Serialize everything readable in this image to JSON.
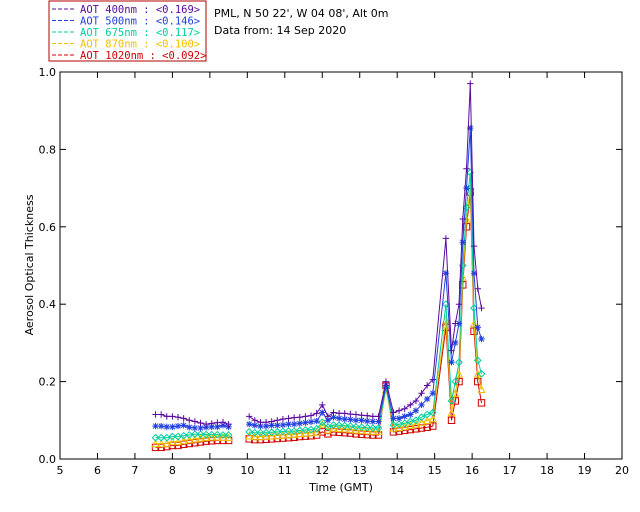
{
  "colors": {
    "background": "#ffffff",
    "axis": "#000000",
    "legend_border": "#b00000"
  },
  "legend": [
    {
      "text": "AOT  400nm : <0.169>",
      "color": "#5a0aa0",
      "marker": "plus"
    },
    {
      "text": "AOT  500nm : <0.146>",
      "color": "#2040e0",
      "marker": "asterisk"
    },
    {
      "text": "AOT  675nm : <0.117>",
      "color": "#00d0a0",
      "marker": "diamond"
    },
    {
      "text": "AOT  870nm : <0.100>",
      "color": "#f0c000",
      "marker": "triangle"
    },
    {
      "text": "AOT 1020nm : <0.092>",
      "color": "#d00000",
      "marker": "square"
    }
  ],
  "info": {
    "line1": "PML, N 50 22', W 04 08', Alt 0m",
    "line2": "Data from: 14 Sep 2020"
  },
  "chart_data": {
    "type": "line",
    "title": "",
    "xlabel": "Time (GMT)",
    "ylabel": "Aerosol Optical Thickness",
    "xlim": [
      5,
      20
    ],
    "ylim": [
      0,
      1.0
    ],
    "xticks": [
      5,
      6,
      7,
      8,
      9,
      10,
      11,
      12,
      13,
      14,
      15,
      16,
      17,
      18,
      19,
      20
    ],
    "yticks": [
      0.0,
      0.2,
      0.4,
      0.6,
      0.8,
      1.0
    ],
    "ytick_labels": [
      "0.0",
      "0.2",
      "0.4",
      "0.6",
      "0.8",
      "1.0"
    ],
    "grid": false,
    "legend_position": "top-left-outside",
    "x": [
      7.55,
      7.7,
      7.85,
      8.0,
      8.15,
      8.3,
      8.45,
      8.6,
      8.75,
      8.9,
      9.05,
      9.2,
      9.35,
      9.5,
      10.05,
      10.2,
      10.35,
      10.5,
      10.65,
      10.8,
      10.95,
      11.1,
      11.25,
      11.4,
      11.55,
      11.7,
      11.85,
      12.0,
      12.15,
      12.3,
      12.45,
      12.6,
      12.75,
      12.9,
      13.05,
      13.2,
      13.35,
      13.5,
      13.7,
      13.9,
      14.05,
      14.2,
      14.35,
      14.5,
      14.65,
      14.8,
      14.95,
      15.3,
      15.45,
      15.55,
      15.65,
      15.75,
      15.85,
      15.95,
      16.05,
      16.15,
      16.25
    ],
    "series": [
      {
        "name": "AOT  400nm",
        "values": [
          0.115,
          0.115,
          0.11,
          0.11,
          0.108,
          0.105,
          0.1,
          0.097,
          0.093,
          0.09,
          0.092,
          0.094,
          0.095,
          0.09,
          0.11,
          0.1,
          0.095,
          0.095,
          0.097,
          0.1,
          0.103,
          0.105,
          0.107,
          0.108,
          0.11,
          0.112,
          0.118,
          0.14,
          0.11,
          0.12,
          0.118,
          0.118,
          0.116,
          0.115,
          0.113,
          0.112,
          0.11,
          0.11,
          0.2,
          0.12,
          0.125,
          0.13,
          0.14,
          0.15,
          0.17,
          0.19,
          0.205,
          0.57,
          0.28,
          0.35,
          0.4,
          0.62,
          0.75,
          0.97,
          0.55,
          0.44,
          0.39
        ]
      },
      {
        "name": "AOT  500nm",
        "values": [
          0.085,
          0.085,
          0.083,
          0.083,
          0.085,
          0.087,
          0.082,
          0.08,
          0.08,
          0.082,
          0.083,
          0.083,
          0.087,
          0.083,
          0.09,
          0.087,
          0.085,
          0.085,
          0.087,
          0.087,
          0.088,
          0.09,
          0.09,
          0.092,
          0.094,
          0.096,
          0.098,
          0.12,
          0.1,
          0.108,
          0.105,
          0.103,
          0.102,
          0.1,
          0.1,
          0.098,
          0.097,
          0.097,
          0.19,
          0.105,
          0.105,
          0.11,
          0.115,
          0.125,
          0.14,
          0.155,
          0.17,
          0.48,
          0.25,
          0.3,
          0.35,
          0.56,
          0.7,
          0.855,
          0.48,
          0.34,
          0.31
        ]
      },
      {
        "name": "AOT  675nm",
        "values": [
          0.055,
          0.055,
          0.055,
          0.058,
          0.058,
          0.06,
          0.062,
          0.064,
          0.064,
          0.063,
          0.063,
          0.063,
          0.062,
          0.062,
          0.07,
          0.068,
          0.068,
          0.068,
          0.069,
          0.07,
          0.071,
          0.072,
          0.072,
          0.074,
          0.075,
          0.076,
          0.078,
          0.095,
          0.082,
          0.088,
          0.087,
          0.086,
          0.085,
          0.083,
          0.082,
          0.081,
          0.08,
          0.08,
          0.185,
          0.088,
          0.09,
          0.092,
          0.097,
          0.1,
          0.108,
          0.115,
          0.12,
          0.4,
          0.15,
          0.2,
          0.25,
          0.5,
          0.65,
          0.74,
          0.39,
          0.255,
          0.22
        ]
      },
      {
        "name": "AOT  870nm",
        "values": [
          0.04,
          0.04,
          0.04,
          0.045,
          0.045,
          0.048,
          0.05,
          0.052,
          0.054,
          0.056,
          0.057,
          0.057,
          0.056,
          0.056,
          0.06,
          0.058,
          0.058,
          0.059,
          0.06,
          0.061,
          0.062,
          0.063,
          0.064,
          0.066,
          0.067,
          0.068,
          0.07,
          0.09,
          0.075,
          0.08,
          0.079,
          0.078,
          0.077,
          0.075,
          0.074,
          0.073,
          0.072,
          0.072,
          0.18,
          0.08,
          0.082,
          0.084,
          0.087,
          0.09,
          0.095,
          0.1,
          0.105,
          0.36,
          0.12,
          0.17,
          0.22,
          0.47,
          0.62,
          0.7,
          0.35,
          0.22,
          0.18
        ]
      },
      {
        "name": "AOT 1020nm",
        "values": [
          0.03,
          0.03,
          0.032,
          0.035,
          0.035,
          0.038,
          0.04,
          0.042,
          0.044,
          0.046,
          0.047,
          0.048,
          0.048,
          0.048,
          0.052,
          0.05,
          0.05,
          0.051,
          0.052,
          0.053,
          0.054,
          0.055,
          0.056,
          0.058,
          0.059,
          0.06,
          0.062,
          0.07,
          0.065,
          0.07,
          0.069,
          0.068,
          0.067,
          0.065,
          0.064,
          0.063,
          0.062,
          0.062,
          0.19,
          0.07,
          0.072,
          0.074,
          0.076,
          0.078,
          0.08,
          0.082,
          0.085,
          0.34,
          0.1,
          0.15,
          0.2,
          0.45,
          0.6,
          0.69,
          0.33,
          0.2,
          0.145
        ]
      }
    ]
  }
}
